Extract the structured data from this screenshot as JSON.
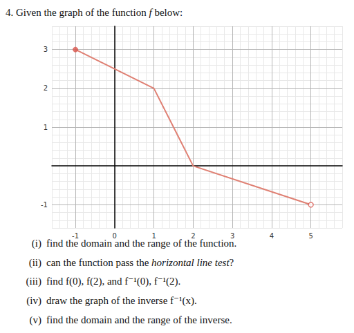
{
  "header": [
    {
      "text": "4. Given the graph of the function "
    },
    {
      "text": "f",
      "italic": true
    },
    {
      "text": " below:"
    }
  ],
  "questions": [
    {
      "label": "(i)",
      "text": "find the domain and the range of the function."
    },
    {
      "label": "(ii)",
      "text": [
        {
          "text": "can the function pass the "
        },
        {
          "text": "horizontal line test",
          "italic": true
        },
        {
          "text": "?"
        }
      ]
    },
    {
      "label": "(iii)",
      "text": "find f(0), f(2), and f⁻¹(0), f⁻¹(2)."
    },
    {
      "label": "(iv)",
      "text": "draw the graph of the inverse f⁻¹(x)."
    },
    {
      "label": "(v)",
      "text": "find the domain and the range of the inverse."
    }
  ],
  "chart_data": {
    "type": "line",
    "series": [
      {
        "type": "line",
        "color": "#df7f72",
        "x": [
          -1,
          1,
          2,
          5
        ],
        "values": [
          3,
          2,
          0,
          -1
        ]
      },
      {
        "type": "scatter",
        "marker": "filled",
        "color": "#d9584f",
        "x": [
          -1
        ],
        "values": [
          3
        ]
      },
      {
        "type": "scatter",
        "marker": "open",
        "color": "#d9584f",
        "x": [
          5
        ],
        "values": [
          -1
        ]
      }
    ],
    "xlim": [
      -1.6,
      5.8
    ],
    "ylim": [
      -1.6,
      3.6
    ],
    "xticks": [
      -1,
      0,
      1,
      2,
      3,
      4,
      5
    ],
    "yticks": [
      -1,
      1,
      2,
      3
    ],
    "grid": true
  }
}
